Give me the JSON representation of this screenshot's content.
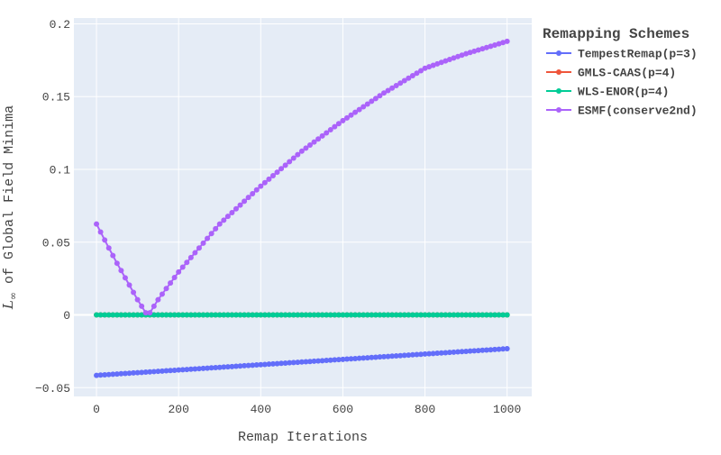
{
  "chart_data": {
    "type": "line",
    "title": "",
    "xlabel": "Remap Iterations",
    "ylabel_prefix": "L",
    "ylabel_sub": "∞",
    "ylabel_rest": " of Global Field Minima",
    "xlim": [
      -55,
      1060
    ],
    "ylim": [
      -0.056,
      0.204
    ],
    "xticks": [
      0,
      200,
      400,
      600,
      800,
      1000
    ],
    "xtick_labels": [
      "0",
      "200",
      "400",
      "600",
      "800",
      "1000"
    ],
    "yticks": [
      -0.05,
      0,
      0.05,
      0.1,
      0.15,
      0.2
    ],
    "ytick_labels": [
      "−0.05",
      "0",
      "0.05",
      "0.1",
      "0.15",
      "0.2"
    ],
    "grid": true,
    "legend_title": "Remapping Schemes",
    "legend_position": "right",
    "marker_every": 10,
    "series": [
      {
        "name": "TempestRemap(p=3)",
        "color": "#636efa",
        "x": [
          0,
          1000
        ],
        "y": [
          -0.0415,
          -0.0232
        ]
      },
      {
        "name": "GMLS-CAAS(p=4)",
        "color": "#ef553b",
        "x": [
          0,
          1000
        ],
        "y": [
          0,
          0
        ]
      },
      {
        "name": "WLS-ENOR(p=4)",
        "color": "#00cc96",
        "x": [
          0,
          1000
        ],
        "y": [
          0,
          0
        ]
      },
      {
        "name": "ESMF(conserve2nd)",
        "color": "#ab63fa",
        "x": [
          0,
          10,
          20,
          30,
          40,
          50,
          60,
          70,
          80,
          90,
          100,
          110,
          120,
          130,
          140,
          150,
          200,
          300,
          400,
          500,
          600,
          700,
          800,
          900,
          1000
        ],
        "y": [
          0.0625,
          0.057,
          0.0515,
          0.046,
          0.0408,
          0.0355,
          0.0305,
          0.0255,
          0.0205,
          0.0155,
          0.0105,
          0.006,
          0.0015,
          0.0015,
          0.006,
          0.0105,
          0.0295,
          0.0625,
          0.0885,
          0.1125,
          0.1335,
          0.1525,
          0.1695,
          0.1795,
          0.188
        ]
      }
    ]
  }
}
